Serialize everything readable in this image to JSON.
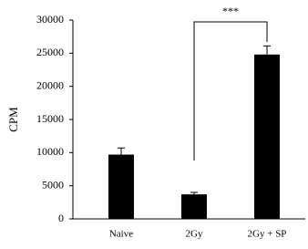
{
  "chart_data": {
    "type": "bar",
    "y_label": "CPM",
    "categories": [
      "Naive",
      "2Gy",
      "2Gy + SP"
    ],
    "values": [
      9700,
      3700,
      24800
    ],
    "errors": [
      1000,
      300,
      1300
    ],
    "color": "#000000",
    "ylim": [
      0,
      30000
    ],
    "yticks": [
      0,
      5000,
      10000,
      15000,
      20000,
      25000,
      30000
    ],
    "annotation": "***"
  }
}
